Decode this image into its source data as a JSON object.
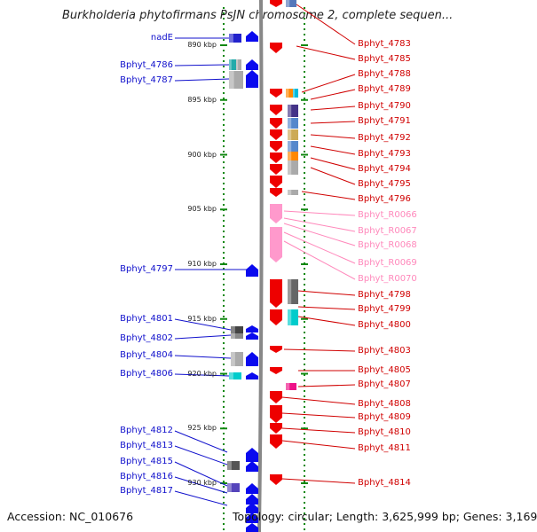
{
  "title": "Burkholderia phytofirmans PsJN chromosome 2, complete sequen...",
  "footer": {
    "accession": "Accession: NC_010676",
    "summary": "Topology: circular; Length: 3,625,999 bp; Genes: 3,169"
  },
  "colors": {
    "axis": "#888888",
    "tick": "#118811",
    "left_label": "#1010cc",
    "right_label": "#d00000",
    "rna_label": "#ff88bb",
    "gene_red": "#ee0000",
    "gene_blue": "#0a0aee",
    "gene_pink": "#ff99cc"
  },
  "scale_ticks": [
    {
      "label": "890 kbp",
      "kbp": 890
    },
    {
      "label": "895 kbp",
      "kbp": 895
    },
    {
      "label": "900 kbp",
      "kbp": 900
    },
    {
      "label": "905 kbp",
      "kbp": 905
    },
    {
      "label": "910 kbp",
      "kbp": 910
    },
    {
      "label": "915 kbp",
      "kbp": 915
    },
    {
      "label": "920 kbp",
      "kbp": 920
    },
    {
      "label": "925 kbp",
      "kbp": 925
    },
    {
      "label": "930 kbp",
      "kbp": 930
    }
  ],
  "left_labels": [
    {
      "text": "nadE"
    },
    {
      "text": "Bphyt_4786"
    },
    {
      "text": "Bphyt_4787"
    },
    {
      "text": "Bphyt_4797"
    },
    {
      "text": "Bphyt_4801"
    },
    {
      "text": "Bphyt_4802"
    },
    {
      "text": "Bphyt_4804"
    },
    {
      "text": "Bphyt_4806"
    },
    {
      "text": "Bphyt_4812"
    },
    {
      "text": "Bphyt_4813"
    },
    {
      "text": "Bphyt_4815"
    },
    {
      "text": "Bphyt_4816"
    },
    {
      "text": "Bphyt_4817"
    }
  ],
  "right_labels": [
    {
      "text": "Bphyt_4783",
      "type": "gene"
    },
    {
      "text": "Bphyt_4785",
      "type": "gene"
    },
    {
      "text": "Bphyt_4788",
      "type": "gene"
    },
    {
      "text": "Bphyt_4789",
      "type": "gene"
    },
    {
      "text": "Bphyt_4790",
      "type": "gene"
    },
    {
      "text": "Bphyt_4791",
      "type": "gene"
    },
    {
      "text": "Bphyt_4792",
      "type": "gene"
    },
    {
      "text": "Bphyt_4793",
      "type": "gene"
    },
    {
      "text": "Bphyt_4794",
      "type": "gene"
    },
    {
      "text": "Bphyt_4795",
      "type": "gene"
    },
    {
      "text": "Bphyt_4796",
      "type": "gene"
    },
    {
      "text": "Bphyt_R0066",
      "type": "rna"
    },
    {
      "text": "Bphyt_R0067",
      "type": "rna"
    },
    {
      "text": "Bphyt_R0068",
      "type": "rna"
    },
    {
      "text": "Bphyt_R0069",
      "type": "rna"
    },
    {
      "text": "Bphyt_R0070",
      "type": "rna"
    },
    {
      "text": "Bphyt_4798",
      "type": "gene"
    },
    {
      "text": "Bphyt_4799",
      "type": "gene"
    },
    {
      "text": "Bphyt_4800",
      "type": "gene"
    },
    {
      "text": "Bphyt_4803",
      "type": "gene"
    },
    {
      "text": "Bphyt_4805",
      "type": "gene"
    },
    {
      "text": "Bphyt_4807",
      "type": "gene"
    },
    {
      "text": "Bphyt_4808",
      "type": "gene"
    },
    {
      "text": "Bphyt_4809",
      "type": "gene"
    },
    {
      "text": "Bphyt_4810",
      "type": "gene"
    },
    {
      "text": "Bphyt_4811",
      "type": "gene"
    },
    {
      "text": "Bphyt_4814",
      "type": "gene"
    }
  ]
}
